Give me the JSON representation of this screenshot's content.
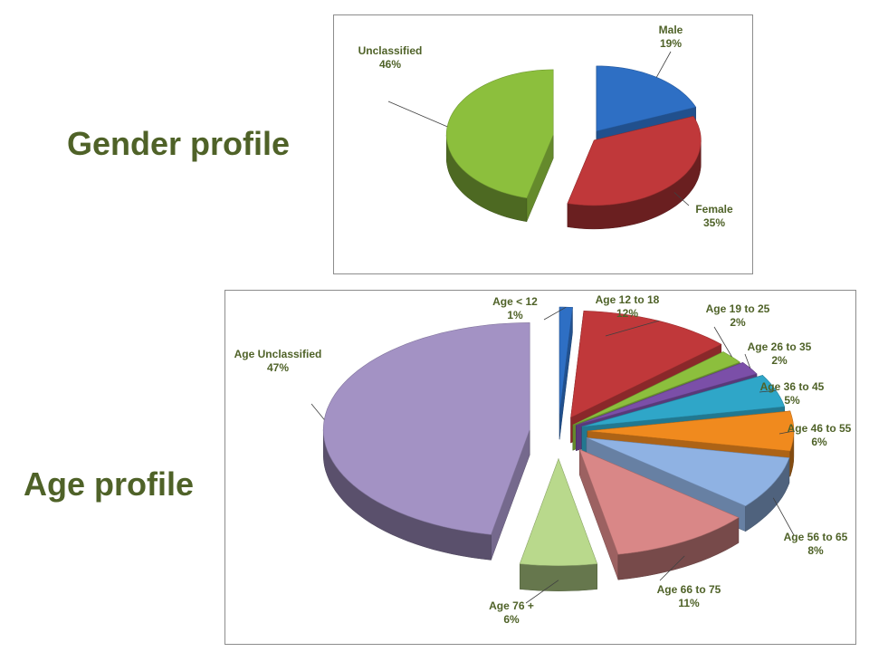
{
  "headings": {
    "gender": "Gender profile",
    "age": "Age profile"
  },
  "chart_data": [
    {
      "type": "pie",
      "title": "",
      "slices": [
        {
          "name": "Male",
          "value": 19,
          "value_label": "19%",
          "color": "#2e6fc4"
        },
        {
          "name": "Female",
          "value": 35,
          "value_label": "35%",
          "color": "#c0383a"
        },
        {
          "name": "Unclassified",
          "value": 46,
          "value_label": "46%",
          "color": "#8cbf3d"
        }
      ],
      "exploded": true,
      "style": "3d"
    },
    {
      "type": "pie",
      "title": "",
      "slices": [
        {
          "name": "Age < 12",
          "value": 1,
          "value_label": "1%",
          "color": "#2e6fc4"
        },
        {
          "name": "Age 12 to 18",
          "value": 12,
          "value_label": "12%",
          "color": "#c0383a"
        },
        {
          "name": "Age 19 to 25",
          "value": 2,
          "value_label": "2%",
          "color": "#8cbf3d"
        },
        {
          "name": "Age 26 to 35",
          "value": 2,
          "value_label": "2%",
          "color": "#7b4fa8"
        },
        {
          "name": "Age 36 to 45",
          "value": 5,
          "value_label": "5%",
          "color": "#2fa6c8"
        },
        {
          "name": "Age 46 to 55",
          "value": 6,
          "value_label": "6%",
          "color": "#f08a1e"
        },
        {
          "name": "Age 56 to 65",
          "value": 8,
          "value_label": "8%",
          "color": "#8fb2e3"
        },
        {
          "name": "Age 66 to 75",
          "value": 11,
          "value_label": "11%",
          "color": "#d98787"
        },
        {
          "name": "Age 76 +",
          "value": 6,
          "value_label": "6%",
          "color": "#b9d98c"
        },
        {
          "name": "Age Unclassified",
          "value": 47,
          "value_label": "47%",
          "color": "#a392c4"
        }
      ],
      "exploded": true,
      "style": "3d"
    }
  ]
}
